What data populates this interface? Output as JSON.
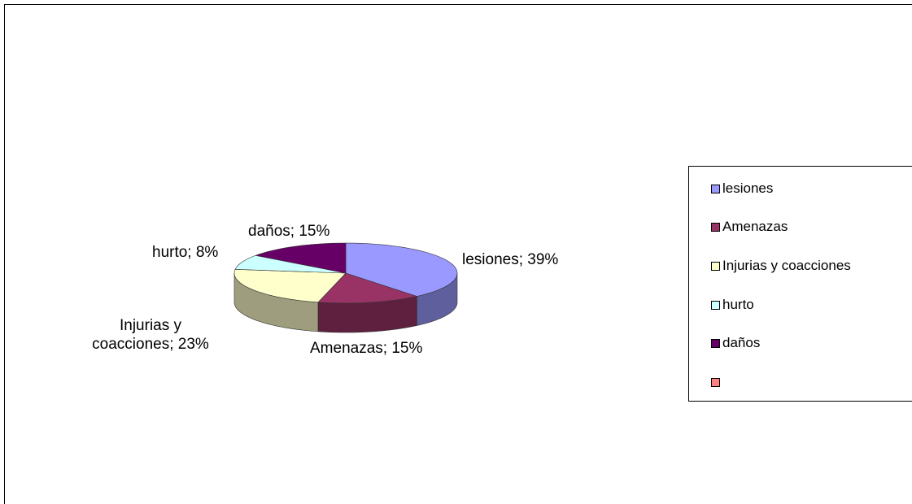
{
  "chart_data": {
    "type": "pie",
    "style": "3d",
    "slices": [
      {
        "label": "lesiones",
        "value": 39,
        "color": "#9999ff",
        "data_label": "lesiones; 39%"
      },
      {
        "label": "Amenazas",
        "value": 15,
        "color": "#993366",
        "data_label": "Amenazas; 15%"
      },
      {
        "label": "Injurias y coacciones",
        "value": 23,
        "color": "#ffffcc",
        "data_label_lines": [
          "Injurias y",
          "coacciones; 23%"
        ]
      },
      {
        "label": "hurto",
        "value": 8,
        "color": "#ccffff",
        "data_label": "hurto; 8%"
      },
      {
        "label": "daños",
        "value": 15,
        "color": "#660066",
        "data_label": "daños; 15%"
      },
      {
        "label": "",
        "value": 0,
        "color": "#ff8080"
      }
    ],
    "legend": {
      "position": "right",
      "entries": [
        "lesiones",
        "Amenazas",
        "Injurias y coacciones",
        "hurto",
        "daños",
        ""
      ]
    }
  }
}
